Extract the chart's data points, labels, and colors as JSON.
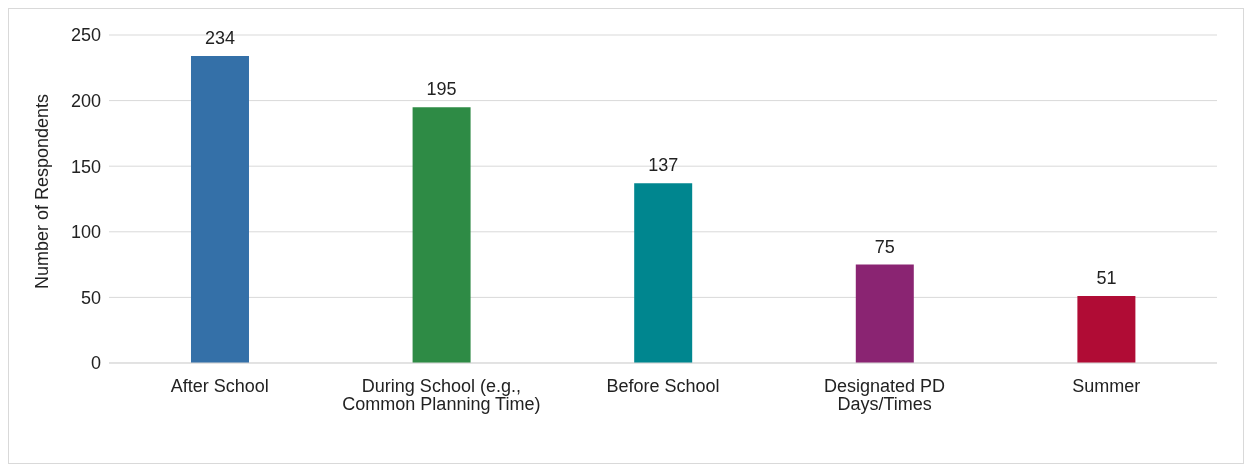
{
  "chart_data": {
    "type": "bar",
    "ylabel": "Number of Respondents",
    "categories": [
      "After School",
      "During School (e.g., Common Planning Time)",
      "Before School",
      "Designated PD Days/Times",
      "Summer"
    ],
    "values": [
      234,
      195,
      137,
      75,
      51
    ],
    "colors": [
      "#3470a8",
      "#2e8b45",
      "#00868f",
      "#8a2472",
      "#b00c35"
    ],
    "ylim": [
      0,
      250
    ],
    "yticks": [
      0,
      50,
      100,
      150,
      200,
      250
    ],
    "grid": "y",
    "data_labels": true,
    "legend": false
  }
}
